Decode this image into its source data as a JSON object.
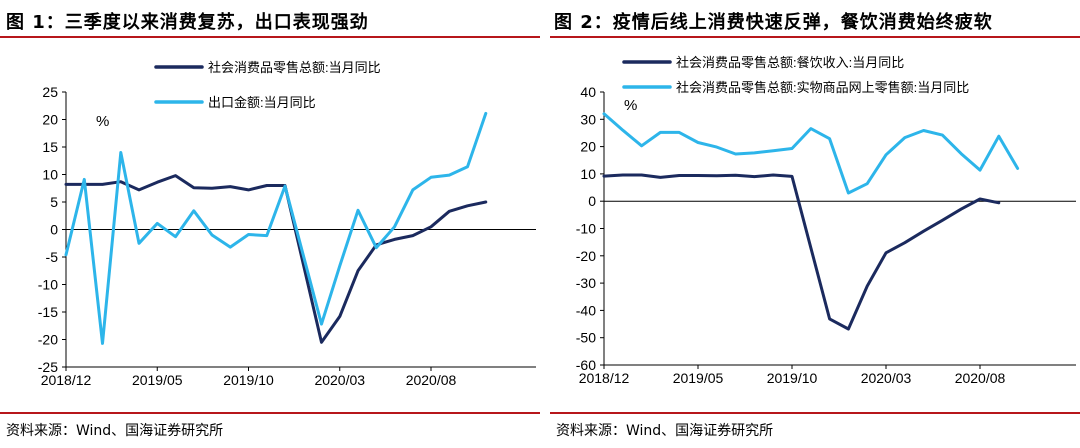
{
  "left": {
    "title": "图 1：三季度以来消费复苏，出口表现强劲",
    "source": "资料来源：Wind、国海证券研究所",
    "chart_data": {
      "type": "line",
      "unit_label": "%",
      "ylim": [
        -25,
        25
      ],
      "yticks": [
        25,
        20,
        15,
        10,
        5,
        0,
        -5,
        -10,
        -15,
        -20,
        -25
      ],
      "xtick_labels": [
        "2018/12",
        "2019/05",
        "2019/10",
        "2020/03",
        "2020/08"
      ],
      "grid": false,
      "legend_position": "top-center",
      "series": [
        {
          "name": "社会消费品零售总额:当月同比",
          "color": "#1b2a5e",
          "values": [
            8.2,
            8.2,
            8.2,
            8.7,
            7.2,
            8.6,
            9.8,
            7.6,
            7.5,
            7.8,
            7.2,
            8.0,
            8.0,
            null,
            -20.5,
            -15.8,
            -7.5,
            -2.8,
            -1.8,
            -1.1,
            0.5,
            3.3,
            4.3,
            5.0
          ]
        },
        {
          "name": "出口金额:当月同比",
          "color": "#2db5ea",
          "values": [
            -4.6,
            9.1,
            -20.7,
            14.0,
            -2.5,
            1.1,
            -1.3,
            3.4,
            -1.0,
            -3.2,
            -0.9,
            -1.1,
            7.9,
            null,
            -17.2,
            -6.6,
            3.5,
            -3.3,
            0.5,
            7.2,
            9.5,
            9.9,
            11.4,
            21.1
          ]
        }
      ]
    }
  },
  "right": {
    "title": "图 2：疫情后线上消费快速反弹，餐饮消费始终疲软",
    "source": "资料来源：Wind、国海证券研究所",
    "chart_data": {
      "type": "line",
      "unit_label": "%",
      "ylim": [
        -60,
        40
      ],
      "yticks": [
        40,
        30,
        20,
        10,
        0,
        -10,
        -20,
        -30,
        -40,
        -50,
        -60
      ],
      "xtick_labels": [
        "2018/12",
        "2019/05",
        "2019/10",
        "2020/03",
        "2020/08"
      ],
      "grid": false,
      "legend_position": "top-center",
      "series": [
        {
          "name": "社会消费品零售总额:餐饮收入:当月同比",
          "color": "#1b2a5e",
          "values": [
            9.2,
            9.6,
            9.6,
            8.7,
            9.4,
            9.4,
            9.3,
            9.5,
            9.0,
            9.6,
            9.1,
            null,
            -43.1,
            -46.8,
            -31.1,
            -18.9,
            -15.2,
            -11.0,
            -7.0,
            -2.9,
            0.8,
            -0.6
          ]
        },
        {
          "name": "社会消费品零售总额:实物商品网上零售额:当月同比",
          "color": "#2db5ea",
          "values": [
            32.0,
            26.0,
            20.3,
            25.2,
            25.2,
            21.5,
            19.8,
            17.3,
            17.7,
            18.5,
            19.3,
            26.6,
            22.9,
            3.0,
            6.4,
            17.0,
            23.3,
            25.9,
            24.2,
            17.4,
            11.4,
            23.8,
            12.0
          ]
        }
      ]
    }
  }
}
